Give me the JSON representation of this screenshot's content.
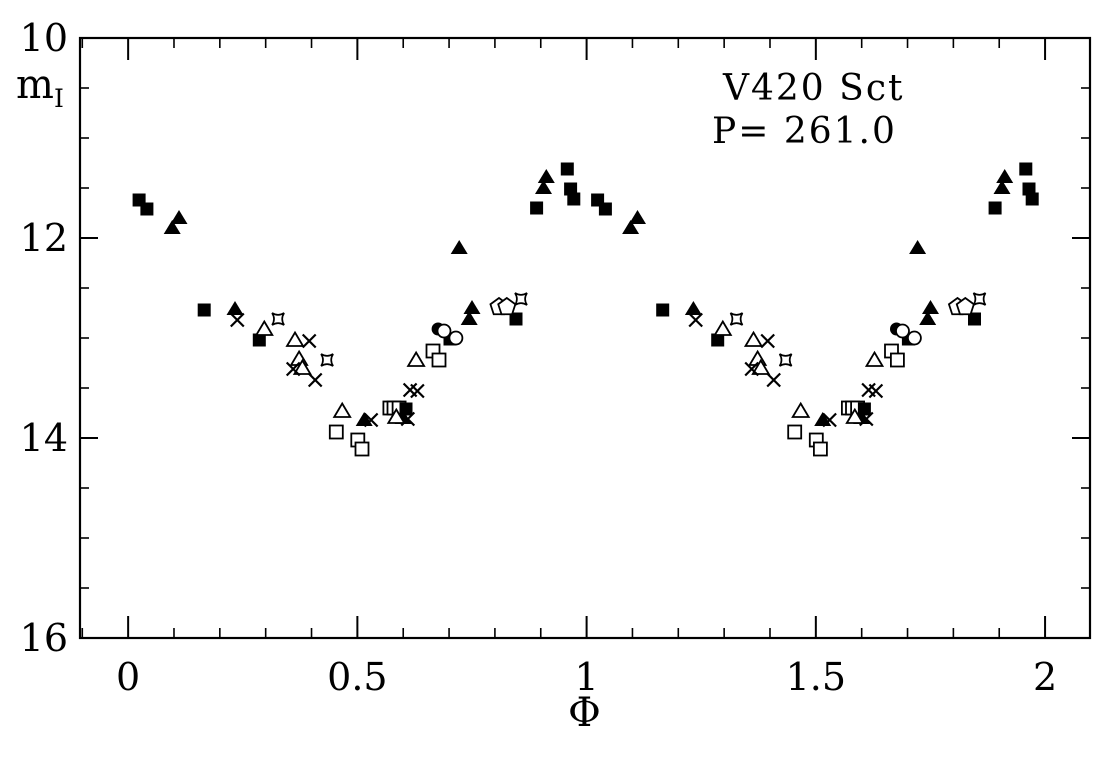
{
  "colors": {
    "ink": "#000000",
    "background": "#ffffff"
  },
  "chart_data": {
    "type": "scatter",
    "title": {
      "line1": "V420 Sct",
      "line2": "P= 261.0"
    },
    "xlabel": "Φ",
    "ylabel_base": "m",
    "ylabel_sub": "I",
    "x_axis": {
      "min": -0.105,
      "max": 2.098,
      "major_ticks": [
        0,
        0.5,
        1,
        1.5,
        2
      ],
      "major_labels": [
        "0",
        "0.5",
        "1",
        "1.5",
        "2"
      ],
      "minor_step": 0.1
    },
    "y_axis": {
      "min": 10,
      "max": 16,
      "major_ticks": [
        10,
        12,
        14,
        16
      ],
      "major_labels": [
        "10",
        "12",
        "14",
        "16"
      ],
      "minor_step": 0.5,
      "inverted_magnitude_scale": true
    },
    "phase_duplicated": true,
    "series": [
      {
        "name": "open-square",
        "marker": "open-square",
        "points": [
          [
            0.454,
            13.94
          ],
          [
            0.501,
            14.02
          ],
          [
            0.51,
            14.11
          ],
          [
            0.571,
            13.7
          ],
          [
            0.58,
            13.7
          ],
          [
            0.591,
            13.7
          ],
          [
            0.665,
            13.13
          ],
          [
            0.678,
            13.22
          ]
        ]
      },
      {
        "name": "filled-square",
        "marker": "filled-square",
        "points": [
          [
            0.024,
            11.62
          ],
          [
            0.041,
            11.71
          ],
          [
            0.166,
            12.72
          ],
          [
            0.286,
            13.02
          ],
          [
            0.606,
            13.71
          ],
          [
            0.702,
            13.01
          ],
          [
            0.846,
            12.81
          ],
          [
            0.891,
            11.7
          ],
          [
            0.958,
            11.31
          ],
          [
            0.965,
            11.51
          ],
          [
            0.972,
            11.61
          ]
        ]
      },
      {
        "name": "filled-triangle",
        "marker": "filled-triangle",
        "points": [
          [
            0.096,
            11.9
          ],
          [
            0.111,
            11.8
          ],
          [
            0.233,
            12.71
          ],
          [
            0.515,
            13.82
          ],
          [
            0.6,
            13.8
          ],
          [
            0.722,
            12.1
          ],
          [
            0.744,
            12.81
          ],
          [
            0.75,
            12.7
          ],
          [
            0.906,
            11.5
          ],
          [
            0.912,
            11.39
          ]
        ]
      },
      {
        "name": "open-triangle",
        "marker": "open-triangle",
        "points": [
          [
            0.297,
            12.91
          ],
          [
            0.364,
            13.02
          ],
          [
            0.373,
            13.21
          ],
          [
            0.38,
            13.3
          ],
          [
            0.467,
            13.73
          ],
          [
            0.585,
            13.79
          ],
          [
            0.628,
            13.22
          ]
        ]
      },
      {
        "name": "cross",
        "marker": "cross",
        "points": [
          [
            0.238,
            12.82
          ],
          [
            0.36,
            13.31
          ],
          [
            0.395,
            13.03
          ],
          [
            0.408,
            13.42
          ],
          [
            0.53,
            13.82
          ],
          [
            0.61,
            13.81
          ],
          [
            0.615,
            13.52
          ],
          [
            0.631,
            13.53
          ]
        ]
      },
      {
        "name": "open-pentagon",
        "marker": "open-pentagon",
        "points": [
          [
            0.809,
            12.69
          ],
          [
            0.826,
            12.69
          ]
        ]
      },
      {
        "name": "filled-circle",
        "marker": "filled-circle",
        "points": [
          [
            0.676,
            12.91
          ]
        ]
      },
      {
        "name": "open-circle",
        "marker": "open-circle",
        "points": [
          [
            0.689,
            12.93
          ],
          [
            0.715,
            13.0
          ]
        ]
      },
      {
        "name": "four-point-star",
        "marker": "four-point-star",
        "points": [
          [
            0.327,
            12.81
          ],
          [
            0.434,
            13.22
          ],
          [
            0.857,
            12.61
          ]
        ]
      }
    ]
  }
}
